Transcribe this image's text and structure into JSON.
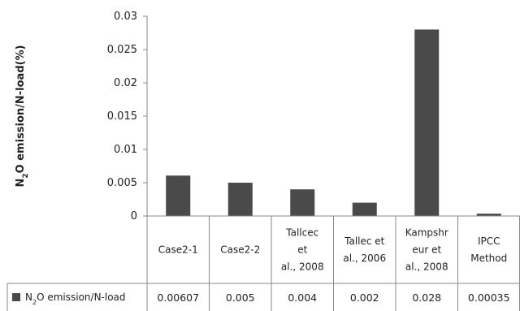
{
  "chart_data": {
    "type": "bar",
    "categories": [
      [
        "Case2-1"
      ],
      [
        "Case2-2"
      ],
      [
        "Tallcec",
        "et",
        "al., 2008"
      ],
      [
        "Tallec et",
        "al., 2006"
      ],
      [
        "Kampshr",
        "eur et",
        "al., 2008"
      ],
      [
        "IPCC",
        "Method"
      ]
    ],
    "series": [
      {
        "name": "N₂O emission/N-load",
        "values": [
          0.00607,
          0.005,
          0.004,
          0.002,
          0.028,
          0.00035
        ],
        "value_labels": [
          "0.00607",
          "0.005",
          "0.004",
          "0.002",
          "0.028",
          "0.00035"
        ],
        "color": "#4a4a4a"
      }
    ],
    "ylabel": "N₂O emission/N-load(%)",
    "ylim": [
      0,
      0.03
    ],
    "yticks": [
      "0",
      "0.005",
      "0.01",
      "0.015",
      "0.02",
      "0.025",
      "0.03"
    ],
    "grid": false,
    "legend": "data-table"
  }
}
